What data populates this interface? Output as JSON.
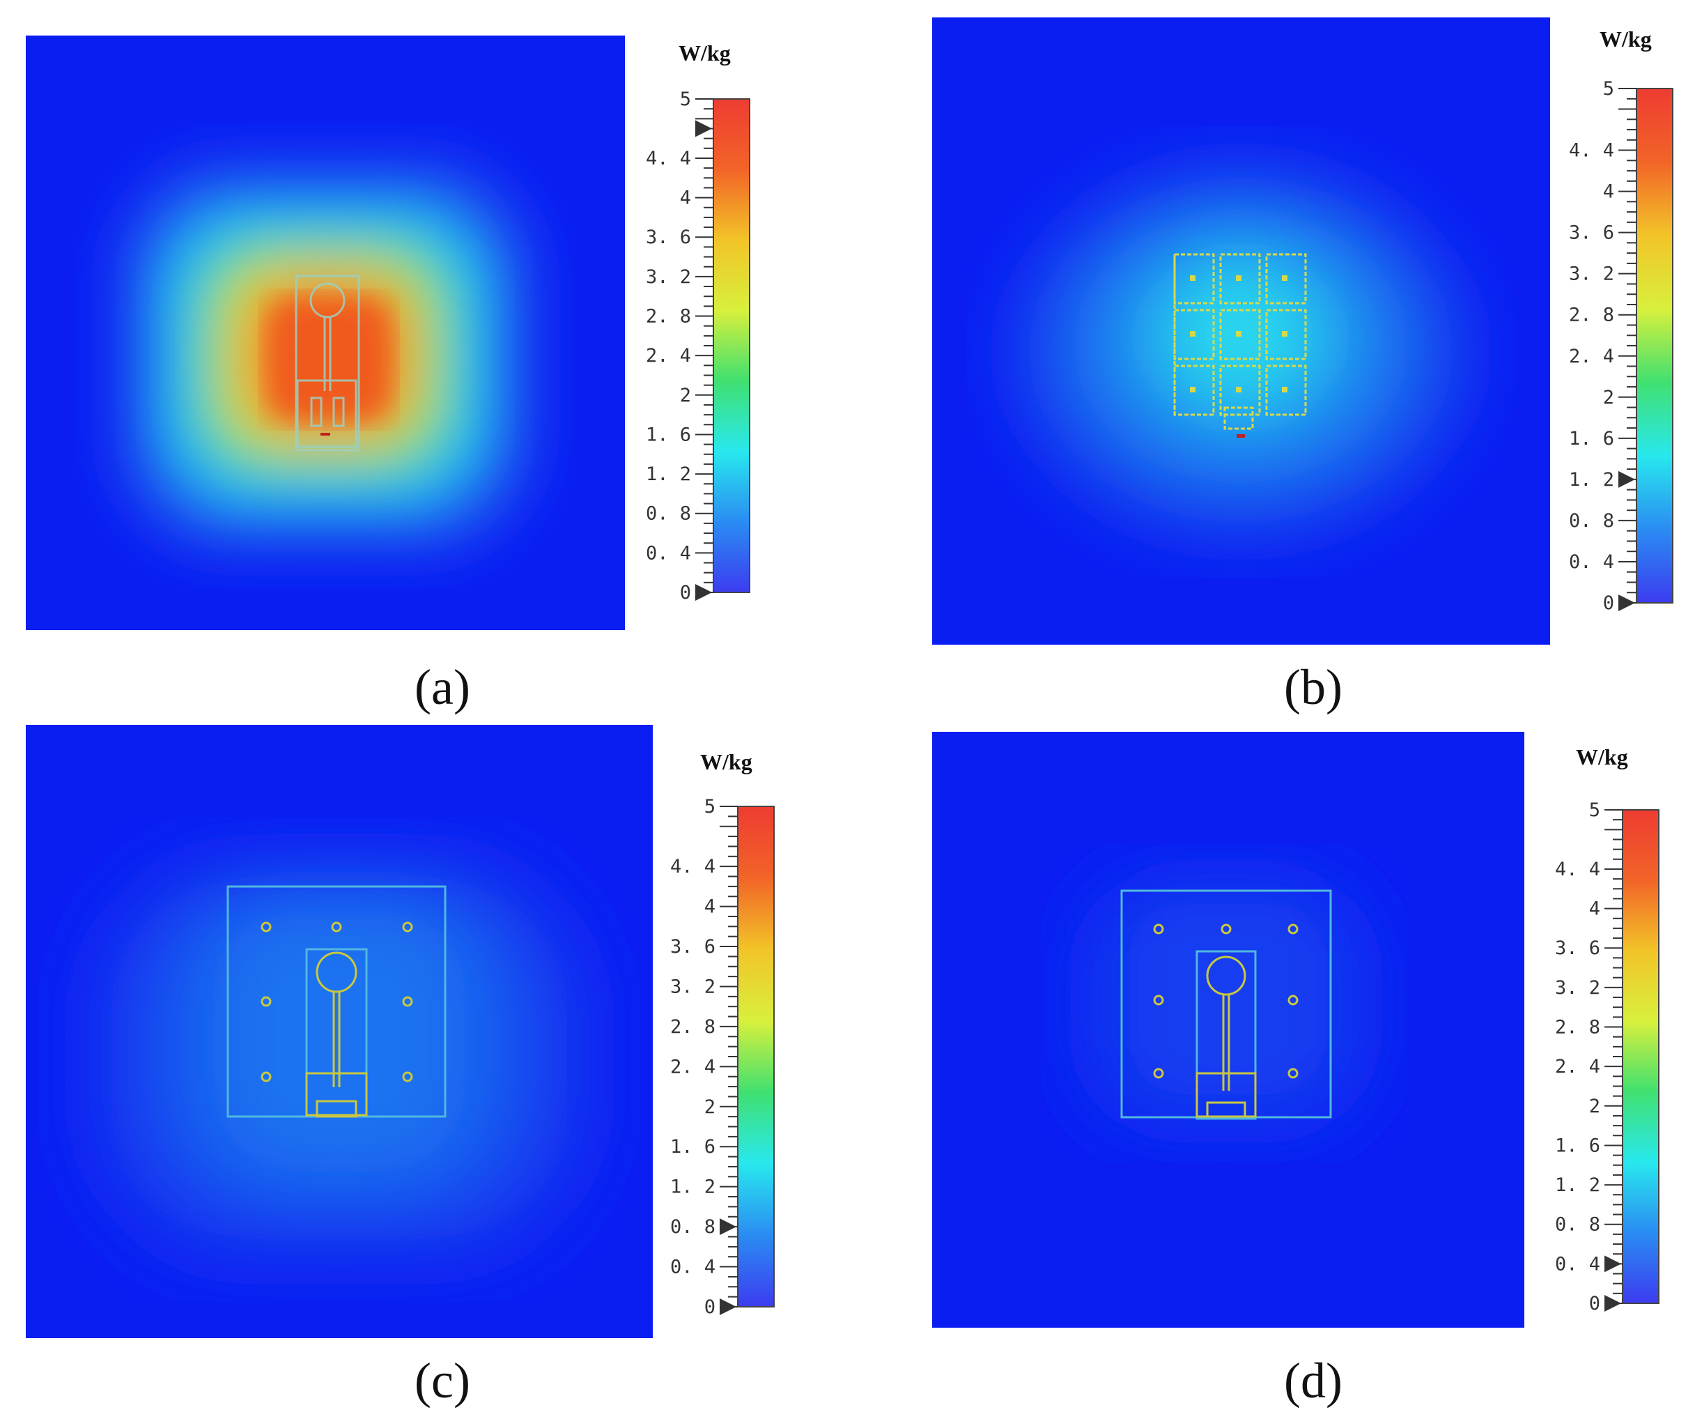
{
  "panels": [
    {
      "id": "a",
      "caption": "(a)",
      "unit": "W/kg",
      "colorbar": {
        "min": 0,
        "max": 5,
        "ticks": [
          "5",
          "4.4",
          "4",
          "3.6",
          "3.2",
          "2.8",
          "2.4",
          "2",
          "1.6",
          "1.2",
          "0.8",
          "0.4",
          "0"
        ],
        "marker_values": [
          4.7,
          0
        ]
      },
      "structure": "single-patch",
      "hotspot_color": "#f0601a"
    },
    {
      "id": "b",
      "caption": "(b)",
      "unit": "W/kg",
      "colorbar": {
        "min": 0,
        "max": 5,
        "ticks": [
          "5",
          "4.4",
          "4",
          "3.6",
          "3.2",
          "2.8",
          "2.4",
          "2",
          "1.6",
          "1.2",
          "0.8",
          "0.4",
          "0"
        ],
        "marker_values": [
          1.2,
          0
        ]
      },
      "structure": "patch-array",
      "hotspot_color": "#29c8e8"
    },
    {
      "id": "c",
      "caption": "(c)",
      "unit": "W/kg",
      "colorbar": {
        "min": 0,
        "max": 5,
        "ticks": [
          "5",
          "4.4",
          "4",
          "3.6",
          "3.2",
          "2.8",
          "2.4",
          "2",
          "1.6",
          "1.2",
          "0.8",
          "0.4",
          "0"
        ],
        "marker_values": [
          0.8,
          0
        ]
      },
      "structure": "patch-with-ground",
      "hotspot_color": "#1f7ff0"
    },
    {
      "id": "d",
      "caption": "(d)",
      "unit": "W/kg",
      "colorbar": {
        "min": 0,
        "max": 5,
        "ticks": [
          "5",
          "4.4",
          "4",
          "3.6",
          "3.2",
          "2.8",
          "2.4",
          "2",
          "1.6",
          "1.2",
          "0.8",
          "0.4",
          "0"
        ],
        "marker_values": [
          0.4,
          0
        ]
      },
      "structure": "patch-with-ground",
      "hotspot_color": "#1748f0"
    }
  ],
  "colors": {
    "background_field": "#0a1ef2",
    "structure_outline": "#d8d848",
    "colorbar_stops": [
      "#3c3cf0",
      "#2a8cf2",
      "#28e8ee",
      "#40e070",
      "#d8f03c",
      "#f2c428",
      "#f26428",
      "#ee3c32"
    ]
  }
}
